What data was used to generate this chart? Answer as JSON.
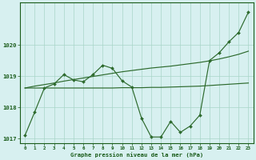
{
  "title": "Graphe pression niveau de la mer (hPa)",
  "xlabel_hours": [
    0,
    1,
    2,
    3,
    4,
    5,
    6,
    7,
    8,
    9,
    10,
    11,
    12,
    13,
    14,
    15,
    16,
    17,
    18,
    19,
    20,
    21,
    22,
    23
  ],
  "series1": {
    "x": [
      0,
      1,
      2,
      3,
      4,
      5,
      6,
      7,
      8,
      9,
      10,
      11,
      12,
      13,
      14,
      15,
      16,
      17,
      18,
      19,
      20,
      21,
      22,
      23
    ],
    "y": [
      1017.1,
      1017.85,
      1018.62,
      1018.75,
      1019.05,
      1018.88,
      1018.82,
      1019.05,
      1019.35,
      1019.25,
      1018.85,
      1018.65,
      1017.65,
      1017.05,
      1017.05,
      1017.55,
      1017.2,
      1017.4,
      1017.75,
      1019.5,
      1019.75,
      1020.1,
      1020.4,
      1021.05
    ]
  },
  "series2": {
    "x": [
      0,
      1,
      2,
      3,
      4,
      5,
      6,
      7,
      8,
      9,
      10,
      11,
      12,
      13,
      14,
      15,
      16,
      17,
      18,
      19,
      20,
      21,
      22,
      23
    ],
    "y": [
      1018.62,
      1018.62,
      1018.62,
      1018.62,
      1018.62,
      1018.62,
      1018.62,
      1018.62,
      1018.62,
      1018.62,
      1018.63,
      1018.63,
      1018.63,
      1018.64,
      1018.64,
      1018.65,
      1018.66,
      1018.67,
      1018.68,
      1018.7,
      1018.72,
      1018.74,
      1018.76,
      1018.78
    ]
  },
  "series3": {
    "x": [
      0,
      1,
      2,
      3,
      4,
      5,
      6,
      7,
      8,
      9,
      10,
      11,
      12,
      13,
      14,
      15,
      16,
      17,
      18,
      19,
      20,
      21,
      22,
      23
    ],
    "y": [
      1018.62,
      1018.68,
      1018.73,
      1018.78,
      1018.84,
      1018.89,
      1018.94,
      1018.99,
      1019.04,
      1019.09,
      1019.14,
      1019.18,
      1019.22,
      1019.26,
      1019.29,
      1019.32,
      1019.36,
      1019.4,
      1019.44,
      1019.49,
      1019.55,
      1019.62,
      1019.7,
      1019.8
    ]
  },
  "line_color": "#2d6a2d",
  "marker_color": "#2d6a2d",
  "bg_color": "#d7f0f0",
  "grid_color": "#a8d5c8",
  "text_color": "#1a5c1a",
  "ylim": [
    1016.85,
    1021.35
  ],
  "yticks": [
    1017,
    1018,
    1019,
    1020
  ],
  "figsize": [
    3.2,
    2.0
  ],
  "dpi": 100
}
